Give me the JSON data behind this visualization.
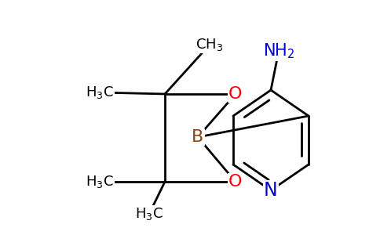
{
  "background_color": "#ffffff",
  "figsize": [
    4.84,
    3.0
  ],
  "dpi": 100,
  "xlim": [
    0.0,
    4.84
  ],
  "ylim": [
    0.0,
    3.0
  ]
}
